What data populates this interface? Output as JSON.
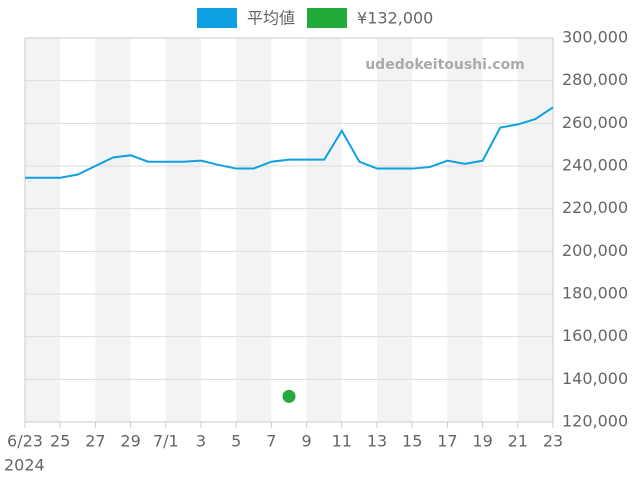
{
  "chart_data": {
    "type": "line",
    "categories": [
      "6/23",
      null,
      "25",
      null,
      "27",
      null,
      "29",
      null,
      "7/1",
      null,
      "3",
      null,
      "5",
      null,
      "7",
      null,
      "9",
      null,
      "11",
      null,
      "13",
      null,
      "15",
      null,
      "17",
      null,
      "19",
      null,
      "21",
      null,
      "23"
    ],
    "x_year": "2024",
    "series": [
      {
        "name": "平均値",
        "color": "#0ea0e3",
        "values": [
          234500,
          234500,
          234500,
          236000,
          240000,
          244000,
          245000,
          242000,
          242000,
          242000,
          242500,
          240500,
          238800,
          238800,
          242000,
          243000,
          243000,
          243000,
          256500,
          242000,
          238800,
          238800,
          238800,
          239500,
          242500,
          241000,
          242500,
          258000,
          259500,
          262000,
          267500
        ]
      },
      {
        "name": "¥132,000",
        "color": "#22aa3a",
        "values": [
          null,
          null,
          null,
          null,
          null,
          null,
          null,
          null,
          null,
          null,
          null,
          null,
          null,
          null,
          null,
          132000,
          null,
          null,
          null,
          null,
          null,
          null,
          null,
          null,
          null,
          null,
          null,
          null,
          null,
          null,
          null
        ]
      }
    ],
    "ylim": [
      120000,
      300000
    ],
    "yticks": [
      {
        "value": 120000,
        "label": "120,000"
      },
      {
        "value": 140000,
        "label": "140,000"
      },
      {
        "value": 160000,
        "label": "160,000"
      },
      {
        "value": 180000,
        "label": "180,000"
      },
      {
        "value": 200000,
        "label": "200,000"
      },
      {
        "value": 220000,
        "label": "220,000"
      },
      {
        "value": 240000,
        "label": "240,000"
      },
      {
        "value": 260000,
        "label": "260,000"
      },
      {
        "value": 280000,
        "label": "280,000"
      },
      {
        "value": 300000,
        "label": "300,000"
      }
    ],
    "watermark": "udedokeitoushi.com",
    "grid": true
  }
}
